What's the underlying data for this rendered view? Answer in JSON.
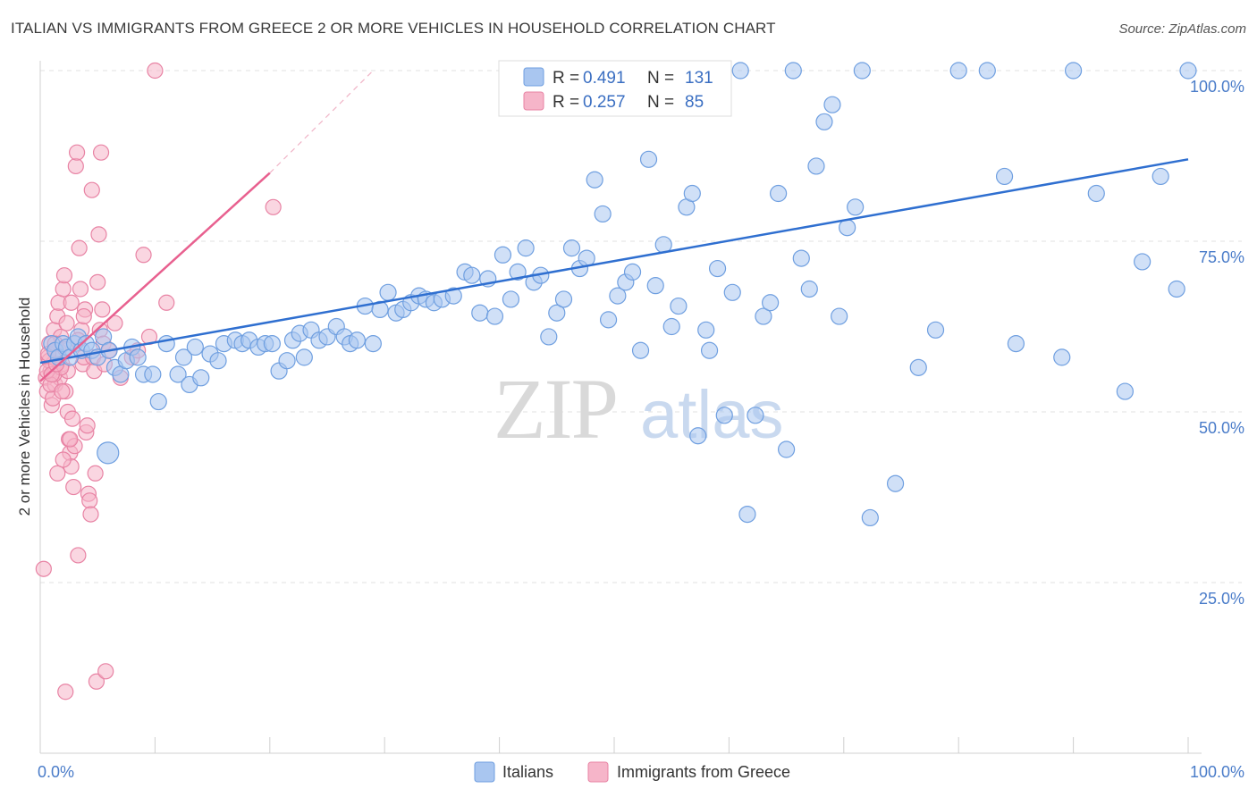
{
  "header": {
    "title": "ITALIAN VS IMMIGRANTS FROM GREECE 2 OR MORE VEHICLES IN HOUSEHOLD CORRELATION CHART",
    "source": "Source: ZipAtlas.com"
  },
  "watermark": {
    "zip": "ZIP",
    "atlas": "atlas"
  },
  "colors": {
    "blue_fill": "#a9c6f0",
    "blue_stroke": "#6f9fe0",
    "blue_line": "#2f6fd0",
    "pink_fill": "#f6b5c9",
    "pink_stroke": "#e883a4",
    "pink_line": "#e8608f",
    "grid": "#e2e2e2",
    "tick_text": "#4a7cc9"
  },
  "chart_data": {
    "type": "scatter",
    "title": "ITALIAN VS IMMIGRANTS FROM GREECE 2 OR MORE VEHICLES IN HOUSEHOLD CORRELATION CHART",
    "xlabel": "",
    "ylabel": "2 or more Vehicles in Household",
    "xlim": [
      0,
      100
    ],
    "ylim": [
      0,
      100
    ],
    "x_tick_labels": [
      "0.0%",
      "100.0%"
    ],
    "y_ticks": [
      25,
      50,
      75,
      100
    ],
    "y_tick_labels": [
      "25.0%",
      "50.0%",
      "75.0%",
      "100.0%"
    ],
    "grid": true,
    "legend_placement": "bottom-center",
    "stats": [
      {
        "r_label": "R =",
        "r": "0.491",
        "n_label": "N =",
        "n": "131"
      },
      {
        "r_label": "R =",
        "r": "0.257",
        "n_label": "N =",
        "n": "85"
      }
    ],
    "series": [
      {
        "name": "Italians",
        "trend": {
          "x0": 0,
          "y0": 57.2,
          "x1": 100,
          "y1": 87.0
        },
        "points": [
          [
            1,
            60
          ],
          [
            1.3,
            59
          ],
          [
            1.6,
            58
          ],
          [
            2,
            60
          ],
          [
            2.3,
            59.5
          ],
          [
            2.6,
            58
          ],
          [
            3,
            60
          ],
          [
            3.3,
            61
          ],
          [
            3.6,
            59
          ],
          [
            4,
            60
          ],
          [
            4.5,
            59
          ],
          [
            5,
            58
          ],
          [
            5.5,
            61
          ],
          [
            6,
            59
          ],
          [
            6.5,
            56.5
          ],
          [
            7,
            55.5
          ],
          [
            7.5,
            57.5
          ],
          [
            8,
            59.5
          ],
          [
            8.5,
            58
          ],
          [
            9,
            55.5
          ],
          [
            9.8,
            55.5
          ],
          [
            10.3,
            51.5
          ],
          [
            11,
            60
          ],
          [
            12,
            55.5
          ],
          [
            12.5,
            58
          ],
          [
            13,
            54
          ],
          [
            13.5,
            59.5
          ],
          [
            14,
            55
          ],
          [
            14.8,
            58.5
          ],
          [
            15.5,
            57.5
          ],
          [
            16,
            60
          ],
          [
            17,
            60.5
          ],
          [
            17.6,
            60
          ],
          [
            18.2,
            60.5
          ],
          [
            19,
            59.5
          ],
          [
            19.6,
            60
          ],
          [
            20.2,
            60
          ],
          [
            20.8,
            56
          ],
          [
            21.5,
            57.5
          ],
          [
            22,
            60.5
          ],
          [
            22.6,
            61.5
          ],
          [
            23,
            58
          ],
          [
            23.6,
            62
          ],
          [
            24.3,
            60.5
          ],
          [
            25,
            61
          ],
          [
            25.8,
            62.5
          ],
          [
            26.5,
            61
          ],
          [
            27,
            60
          ],
          [
            27.6,
            60.5
          ],
          [
            28.3,
            65.5
          ],
          [
            29,
            60
          ],
          [
            29.6,
            65
          ],
          [
            30.3,
            67.5
          ],
          [
            31,
            64.5
          ],
          [
            31.6,
            65
          ],
          [
            32.3,
            66
          ],
          [
            33,
            67
          ],
          [
            33.6,
            66.5
          ],
          [
            34.3,
            66
          ],
          [
            35,
            66.5
          ],
          [
            36,
            67
          ],
          [
            37,
            70.5
          ],
          [
            37.6,
            70
          ],
          [
            38.3,
            64.5
          ],
          [
            39,
            69.5
          ],
          [
            39.6,
            64
          ],
          [
            40.3,
            73
          ],
          [
            41,
            66.5
          ],
          [
            41.6,
            70.5
          ],
          [
            42.3,
            74
          ],
          [
            43,
            69
          ],
          [
            43.6,
            70
          ],
          [
            44.3,
            61
          ],
          [
            45,
            64.5
          ],
          [
            45.6,
            66.5
          ],
          [
            46.3,
            74
          ],
          [
            47,
            71
          ],
          [
            47.6,
            72.5
          ],
          [
            48.3,
            84
          ],
          [
            49,
            79
          ],
          [
            49.5,
            63.5
          ],
          [
            50.3,
            67
          ],
          [
            51,
            69
          ],
          [
            51.6,
            70.5
          ],
          [
            52.3,
            59
          ],
          [
            53,
            87
          ],
          [
            53.6,
            68.5
          ],
          [
            54.3,
            74.5
          ],
          [
            55,
            62.5
          ],
          [
            55.6,
            65.5
          ],
          [
            56.3,
            80
          ],
          [
            56.8,
            82
          ],
          [
            57.3,
            46.5
          ],
          [
            58,
            62
          ],
          [
            58.3,
            59
          ],
          [
            59,
            71
          ],
          [
            59.6,
            49.5
          ],
          [
            60.3,
            67.5
          ],
          [
            61,
            100
          ],
          [
            61.6,
            35
          ],
          [
            62.3,
            49.5
          ],
          [
            63,
            64
          ],
          [
            63.6,
            66
          ],
          [
            64.3,
            82
          ],
          [
            65,
            44.5
          ],
          [
            65.6,
            100
          ],
          [
            66.3,
            72.5
          ],
          [
            67,
            68
          ],
          [
            67.6,
            86
          ],
          [
            68.3,
            92.5
          ],
          [
            69,
            95
          ],
          [
            69.6,
            64
          ],
          [
            70.3,
            77
          ],
          [
            71,
            80
          ],
          [
            71.6,
            100
          ],
          [
            72.3,
            34.5
          ],
          [
            74.5,
            39.5
          ],
          [
            76.5,
            56.5
          ],
          [
            78,
            62
          ],
          [
            80,
            100
          ],
          [
            82.5,
            100
          ],
          [
            84,
            84.5
          ],
          [
            85,
            60
          ],
          [
            89,
            58
          ],
          [
            90,
            100
          ],
          [
            92,
            82
          ],
          [
            94.5,
            53
          ],
          [
            96,
            72
          ],
          [
            100,
            100
          ],
          [
            99,
            68
          ],
          [
            97.6,
            84.5
          ]
        ],
        "big_point": [
          5.9,
          44
        ]
      },
      {
        "name": "Immigrants from Greece",
        "trend": {
          "x0": 0,
          "y0": 54.5,
          "x1": 20,
          "y1": 85.0
        },
        "trend_dashed": {
          "x0": 20,
          "y0": 85.0,
          "x1": 29,
          "y1": 100
        },
        "points": [
          [
            0.3,
            27
          ],
          [
            0.5,
            55
          ],
          [
            0.6,
            53
          ],
          [
            0.7,
            58
          ],
          [
            0.8,
            60
          ],
          [
            0.9,
            56
          ],
          [
            1.0,
            51
          ],
          [
            1.1,
            57
          ],
          [
            1.2,
            62
          ],
          [
            1.3,
            54
          ],
          [
            1.4,
            59
          ],
          [
            1.5,
            64
          ],
          [
            1.6,
            66
          ],
          [
            1.7,
            55
          ],
          [
            1.8,
            61
          ],
          [
            1.9,
            57
          ],
          [
            2.0,
            68
          ],
          [
            2.1,
            70
          ],
          [
            2.2,
            53
          ],
          [
            2.3,
            63
          ],
          [
            2.4,
            50
          ],
          [
            2.5,
            46
          ],
          [
            2.6,
            44
          ],
          [
            2.7,
            42
          ],
          [
            2.8,
            49
          ],
          [
            2.9,
            39
          ],
          [
            3.0,
            45
          ],
          [
            3.1,
            86
          ],
          [
            3.2,
            88
          ],
          [
            3.3,
            29
          ],
          [
            3.4,
            74
          ],
          [
            3.5,
            68
          ],
          [
            3.6,
            62
          ],
          [
            3.7,
            57
          ],
          [
            3.8,
            58
          ],
          [
            3.9,
            65
          ],
          [
            4.0,
            47
          ],
          [
            4.1,
            48
          ],
          [
            4.2,
            38
          ],
          [
            4.3,
            37
          ],
          [
            4.4,
            35
          ],
          [
            4.5,
            82.5
          ],
          [
            4.6,
            58
          ],
          [
            4.7,
            56
          ],
          [
            4.8,
            41
          ],
          [
            4.9,
            10.5
          ],
          [
            5.0,
            69
          ],
          [
            5.1,
            76
          ],
          [
            5.2,
            62
          ],
          [
            5.3,
            88
          ],
          [
            5.4,
            65
          ],
          [
            5.5,
            60
          ],
          [
            5.6,
            57
          ],
          [
            5.7,
            12
          ],
          [
            6.0,
            59
          ],
          [
            6.5,
            63
          ],
          [
            7.0,
            55
          ],
          [
            8.0,
            58
          ],
          [
            8.5,
            59
          ],
          [
            9.0,
            73
          ],
          [
            9.5,
            61
          ],
          [
            10.0,
            100
          ],
          [
            11.0,
            66
          ],
          [
            20.3,
            80
          ],
          [
            2.2,
            9
          ],
          [
            1.2,
            55.5
          ],
          [
            0.8,
            57.5
          ],
          [
            1.6,
            59
          ],
          [
            2.4,
            56
          ],
          [
            1.1,
            52
          ],
          [
            0.9,
            54
          ],
          [
            1.9,
            53
          ],
          [
            2.7,
            66
          ],
          [
            3.3,
            60.5
          ],
          [
            3.8,
            64
          ],
          [
            1.5,
            41
          ],
          [
            2.0,
            43
          ],
          [
            2.6,
            46
          ],
          [
            0.7,
            58.5
          ],
          [
            1.3,
            60
          ],
          [
            1.8,
            56.5
          ],
          [
            2.2,
            59.2
          ],
          [
            0.6,
            56
          ],
          [
            1.0,
            55.5
          ],
          [
            1.4,
            57
          ]
        ]
      }
    ]
  },
  "legend": {
    "items": [
      {
        "label": "Italians"
      },
      {
        "label": "Immigrants from Greece"
      }
    ]
  }
}
